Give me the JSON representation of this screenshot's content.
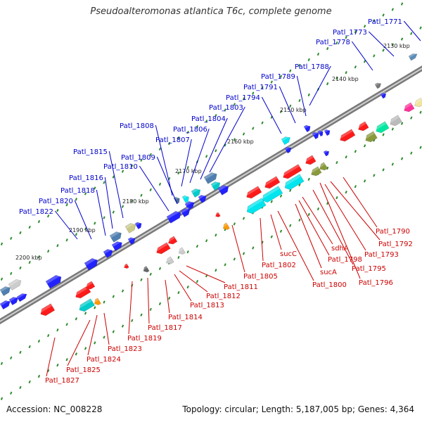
{
  "title": "Pseudoalteromonas atlantica T6c, complete genome",
  "footer": {
    "accession": "Accession: NC_008228",
    "summary": "Topology: circular; Length: 5,187,005 bp; Genes: 4,364"
  },
  "colors": {
    "forward_label": "#0000cc",
    "reverse_label": "#cc0000",
    "backbone": "#7a7a7a",
    "tick": "#2e8b2e"
  },
  "scale_labels": [
    "2130 kbp",
    "2140 kbp",
    "2150 kbp",
    "2160 kbp",
    "2170 kbp",
    "2180 kbp",
    "2190 kbp",
    "2200 kbp"
  ],
  "forward_labels": [
    "Patl_1771",
    "Patl_1773",
    "Patl_1778",
    "Patl_1788",
    "Patl_1789",
    "Patl_1791",
    "Patl_1794",
    "Patl_1803",
    "Patl_1804",
    "Patl_1806",
    "Patl_1807",
    "Patl_1808",
    "Patl_1809",
    "Patl_1810",
    "Patl_1815",
    "Patl_1816",
    "Patl_1818",
    "Patl_1820",
    "Patl_1822"
  ],
  "reverse_labels": [
    "Patl_1790",
    "Patl_1792",
    "Patl_1793",
    "Patl_1795",
    "Patl_1796",
    "sdhA",
    "Patl_1798",
    "sucA",
    "Patl_1800",
    "sucC",
    "Patl_1802",
    "Patl_1805",
    "Patl_1811",
    "Patl_1812",
    "Patl_1813",
    "Patl_1814",
    "Patl_1817",
    "Patl_1819",
    "Patl_1823",
    "Patl_1824",
    "Patl_1825",
    "Patl_1827"
  ]
}
